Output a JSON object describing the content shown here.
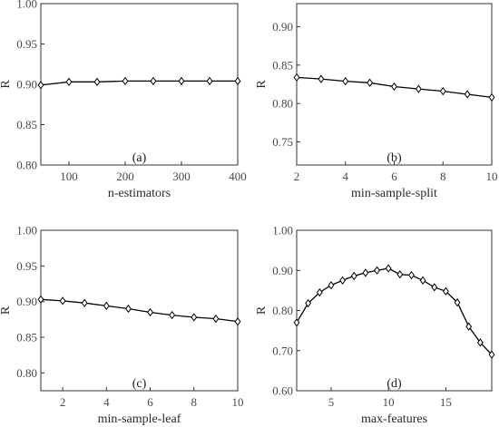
{
  "figure": {
    "background": "#ffffff",
    "line_color": "#000000",
    "marker": "diamond-open"
  },
  "chart_data": [
    {
      "type": "line",
      "panel_label": "(a)",
      "xlabel": "n-estimators",
      "ylabel": "R",
      "xlim": [
        50,
        400
      ],
      "ylim": [
        0.8,
        1.0
      ],
      "xticks": [
        100,
        200,
        300,
        400
      ],
      "yticks": [
        "0.80",
        "0.85",
        "0.90",
        "0.95",
        "1.00"
      ],
      "ytick_values": [
        0.8,
        0.85,
        0.9,
        0.95,
        1.0
      ],
      "x": [
        50,
        100,
        150,
        200,
        250,
        300,
        350,
        400
      ],
      "y": [
        0.899,
        0.903,
        0.903,
        0.904,
        0.904,
        0.904,
        0.904,
        0.904
      ]
    },
    {
      "type": "line",
      "panel_label": "(b)",
      "xlabel": "min-sample-split",
      "ylabel": "R",
      "xlim": [
        2,
        10
      ],
      "ylim": [
        0.72,
        0.93
      ],
      "xticks": [
        2,
        4,
        6,
        8,
        10
      ],
      "yticks": [
        "0.75",
        "0.80",
        "0.85",
        "0.90"
      ],
      "ytick_values": [
        0.75,
        0.8,
        0.85,
        0.9
      ],
      "x": [
        2,
        3,
        4,
        5,
        6,
        7,
        8,
        9,
        10
      ],
      "y": [
        0.834,
        0.832,
        0.829,
        0.827,
        0.822,
        0.819,
        0.816,
        0.812,
        0.808
      ]
    },
    {
      "type": "line",
      "panel_label": "(c)",
      "xlabel": "min-sample-leaf",
      "ylabel": "R",
      "xlim": [
        1,
        10
      ],
      "ylim": [
        0.775,
        1.0
      ],
      "xticks": [
        2,
        4,
        6,
        8,
        10
      ],
      "yticks": [
        "0.80",
        "0.85",
        "0.90",
        "0.95",
        "1.00"
      ],
      "ytick_values": [
        0.8,
        0.85,
        0.9,
        0.95,
        1.0
      ],
      "x": [
        1,
        2,
        3,
        4,
        5,
        6,
        7,
        8,
        9,
        10
      ],
      "y": [
        0.903,
        0.901,
        0.898,
        0.894,
        0.89,
        0.885,
        0.881,
        0.878,
        0.876,
        0.872
      ]
    },
    {
      "type": "line",
      "panel_label": "(d)",
      "xlabel": "max-features",
      "ylabel": "R",
      "xlim": [
        2,
        19
      ],
      "ylim": [
        0.6,
        1.0
      ],
      "xticks": [
        5,
        10,
        15
      ],
      "yticks": [
        "0.60",
        "0.70",
        "0.80",
        "0.90",
        "1.00"
      ],
      "ytick_values": [
        0.6,
        0.7,
        0.8,
        0.9,
        1.0
      ],
      "x": [
        2,
        3,
        4,
        5,
        6,
        7,
        8,
        9,
        10,
        11,
        12,
        13,
        14,
        15,
        16,
        17,
        18,
        19
      ],
      "y": [
        0.77,
        0.818,
        0.845,
        0.863,
        0.875,
        0.886,
        0.894,
        0.9,
        0.905,
        0.89,
        0.888,
        0.875,
        0.858,
        0.848,
        0.82,
        0.76,
        0.72,
        0.69
      ]
    }
  ]
}
